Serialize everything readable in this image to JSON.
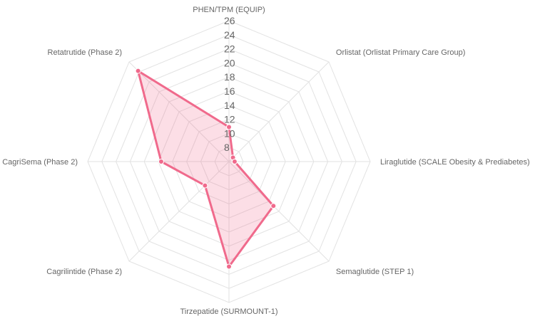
{
  "chart_data": {
    "type": "radar",
    "title": "",
    "categories": [
      "PHEN/TPM (EQUIP)",
      "Orlistat (Orlistat Primary Care Group)",
      "Liraglutide (SCALE Obesity & Prediabetes)",
      "Semaglutide (STEP 1)",
      "Tirzepatide (SURMOUNT-1)",
      "Cagrilintide (Phase 2)",
      "CagriSema (Phase 2)",
      "Retatrutide (Phase 2)"
    ],
    "series": [
      {
        "values": [
          10.9,
          6.8,
          6.8,
          14.9,
          20.9,
          10.8,
          15.6,
          24.2
        ],
        "color": "#f06a8c",
        "fill": "rgba(240,106,140,0.22)"
      }
    ],
    "r_min": 6,
    "r_max": 26,
    "ticks": [
      8,
      10,
      12,
      14,
      16,
      18,
      20,
      22,
      24,
      26
    ],
    "grid": true,
    "grid_color": "#e2e2e2"
  }
}
